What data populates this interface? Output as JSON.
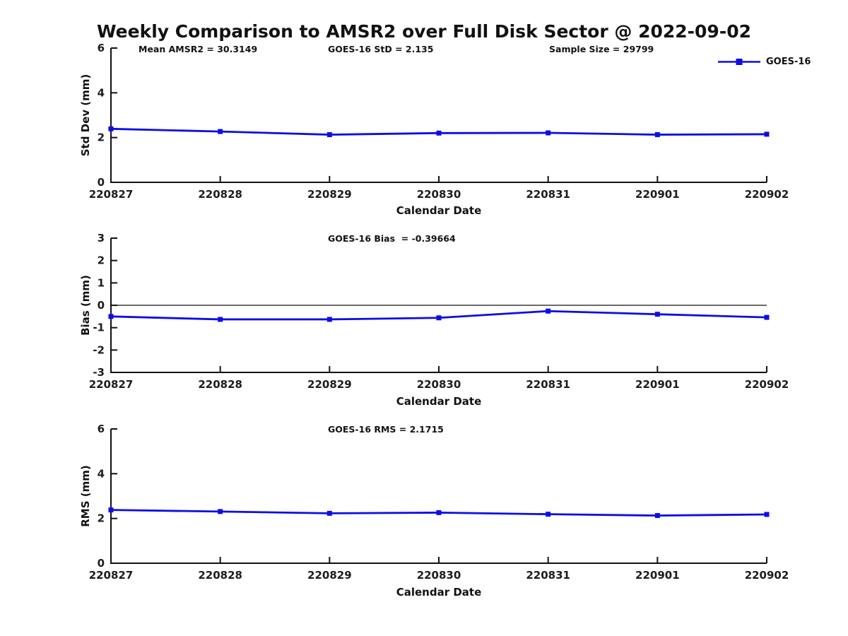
{
  "title": "Weekly Comparison to AMSR2 over Full Disk Sector @ 2022-09-02",
  "legend": {
    "label": "GOES-16"
  },
  "colors": {
    "line": "#0d0de8",
    "axis": "#111111",
    "text": "#1c1c1c",
    "background": "#ffffff"
  },
  "chart_data": [
    {
      "id": "std_dev",
      "type": "line",
      "ylabel": "Std Dev (mm)",
      "xlabel": "Calendar Date",
      "ylim": [
        0,
        6
      ],
      "yticks": [
        0,
        2,
        4,
        6
      ],
      "grid": false,
      "zero_line": false,
      "legend_position": "top-right-outside",
      "categories": [
        "220827",
        "220828",
        "220829",
        "220830",
        "220831",
        "220901",
        "220902"
      ],
      "series": [
        {
          "name": "GOES-16",
          "values": [
            2.39,
            2.27,
            2.13,
            2.2,
            2.21,
            2.13,
            2.15
          ]
        }
      ],
      "annotations": [
        "Mean AMSR2 = 30.3149",
        "GOES-16 StD = 2.135",
        "Sample Size = 29799"
      ]
    },
    {
      "id": "bias",
      "type": "line",
      "ylabel": "Bias (mm)",
      "xlabel": "Calendar Date",
      "ylim": [
        -3,
        3
      ],
      "yticks": [
        -3,
        -2,
        -1,
        0,
        1,
        2,
        3
      ],
      "grid": false,
      "zero_line": true,
      "categories": [
        "220827",
        "220828",
        "220829",
        "220830",
        "220831",
        "220901",
        "220902"
      ],
      "series": [
        {
          "name": "GOES-16",
          "values": [
            -0.5,
            -0.63,
            -0.63,
            -0.56,
            -0.26,
            -0.4,
            -0.54
          ]
        }
      ],
      "annotations": [
        "GOES-16 Bias  = -0.39664"
      ]
    },
    {
      "id": "rms",
      "type": "line",
      "ylabel": "RMS (mm)",
      "xlabel": "Calendar Date",
      "ylim": [
        0,
        6
      ],
      "yticks": [
        0,
        2,
        4,
        6
      ],
      "grid": false,
      "zero_line": false,
      "categories": [
        "220827",
        "220828",
        "220829",
        "220830",
        "220831",
        "220901",
        "220902"
      ],
      "series": [
        {
          "name": "GOES-16",
          "values": [
            2.38,
            2.31,
            2.23,
            2.26,
            2.19,
            2.13,
            2.18
          ]
        }
      ],
      "annotations": [
        "GOES-16 RMS = 2.1715"
      ]
    }
  ]
}
